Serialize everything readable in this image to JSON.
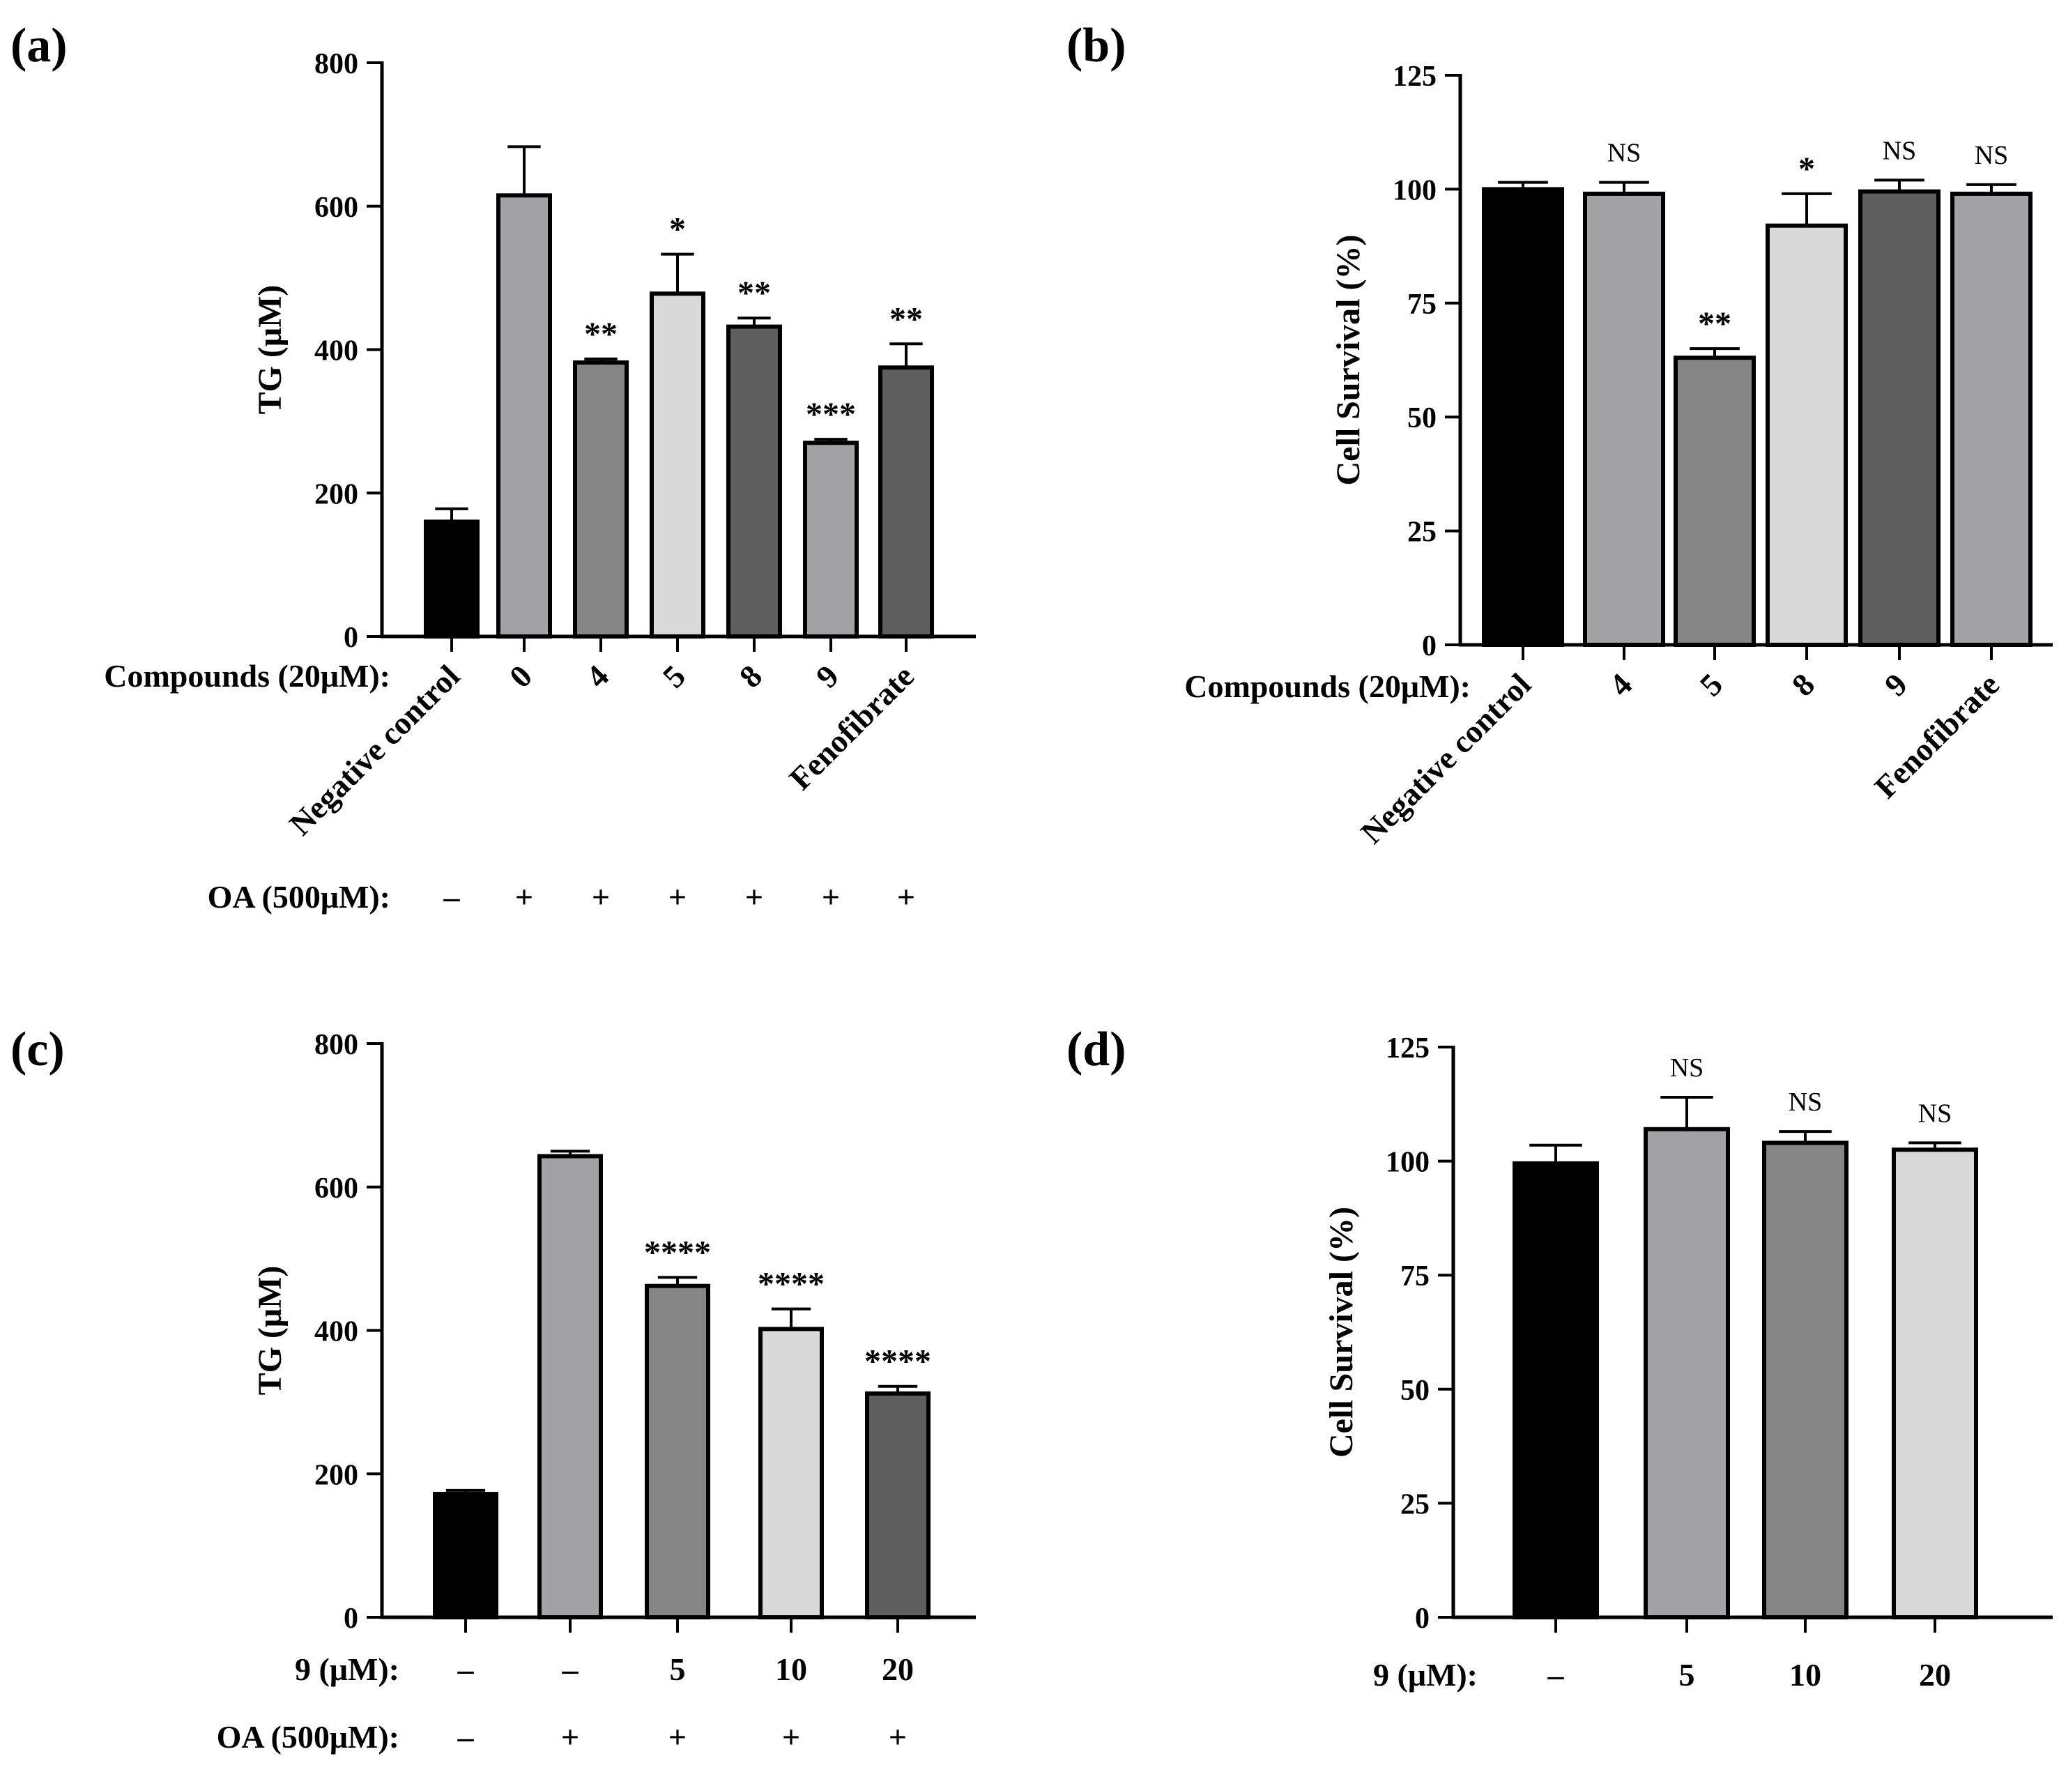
{
  "chart_data": [
    {
      "panel": "(a)",
      "type": "bar",
      "ylabel": "TG (μM)",
      "ylim": [
        0,
        800
      ],
      "yticks": [
        0,
        200,
        400,
        600,
        800
      ],
      "categories": [
        "Negative control",
        "0",
        "4",
        "5",
        "8",
        "9",
        "Fenofibrate"
      ],
      "values": [
        160,
        615,
        382,
        478,
        432,
        270,
        375
      ],
      "errors": [
        18,
        68,
        5,
        55,
        12,
        5,
        33
      ],
      "fills": [
        "#000000",
        "#a3a3a6",
        "#858585",
        "#d9d9d9",
        "#5e5e5e",
        "#a3a3a6",
        "#5e5e5e"
      ],
      "significance": [
        "",
        "",
        "**",
        "*",
        "**",
        "***",
        "**"
      ],
      "rows": [
        {
          "label": "Compounds (20μM):",
          "values": []
        },
        {
          "label": "OA (500μM):",
          "values": [
            "–",
            "+",
            "+",
            "+",
            "+",
            "+",
            "+"
          ]
        }
      ]
    },
    {
      "panel": "(b)",
      "type": "bar",
      "ylabel": "Cell Survival (%)",
      "ylim": [
        0,
        125
      ],
      "yticks": [
        0,
        25,
        50,
        75,
        100,
        125
      ],
      "categories": [
        "Negative control",
        "4",
        "5",
        "8",
        "9",
        "Fenofibrate"
      ],
      "values": [
        100,
        99,
        63,
        92,
        99.5,
        99
      ],
      "errors": [
        1.5,
        2.5,
        2,
        7,
        2.5,
        2
      ],
      "fills": [
        "#000000",
        "#a3a3a6",
        "#858585",
        "#d9d9d9",
        "#5e5e5e",
        "#a3a3a6"
      ],
      "significance": [
        "",
        "NS",
        "**",
        "*",
        "NS",
        "NS"
      ],
      "rows": [
        {
          "label": "Compounds (20μM):",
          "values": []
        }
      ]
    },
    {
      "panel": "(c)",
      "type": "bar",
      "ylabel": "TG (μM)",
      "ylim": [
        0,
        800
      ],
      "yticks": [
        0,
        200,
        400,
        600,
        800
      ],
      "categories": [
        "",
        "",
        "",
        "",
        ""
      ],
      "values": [
        172,
        643,
        462,
        402,
        312
      ],
      "errors": [
        5,
        7,
        12,
        28,
        10
      ],
      "fills": [
        "#000000",
        "#a3a3a6",
        "#858585",
        "#d9d9d9",
        "#5e5e5e"
      ],
      "significance": [
        "",
        "",
        "****",
        "****",
        "****"
      ],
      "rows": [
        {
          "label": "9 (μM):",
          "values": [
            "–",
            "–",
            "5",
            "10",
            "20"
          ]
        },
        {
          "label": "OA (500μM):",
          "values": [
            "–",
            "+",
            "+",
            "+",
            "+"
          ]
        }
      ]
    },
    {
      "panel": "(d)",
      "type": "bar",
      "ylabel": "Cell Survival (%)",
      "ylim": [
        0,
        125
      ],
      "yticks": [
        0,
        25,
        50,
        75,
        100,
        125
      ],
      "categories": [
        "",
        "",
        "",
        ""
      ],
      "values": [
        99.5,
        107,
        104,
        102.5
      ],
      "errors": [
        4,
        7,
        2.5,
        1.5
      ],
      "fills": [
        "#000000",
        "#a3a3a6",
        "#858585",
        "#d9d9d9"
      ],
      "significance": [
        "",
        "NS",
        "NS",
        "NS"
      ],
      "rows": [
        {
          "label": "9 (μM):",
          "values": [
            "–",
            "5",
            "10",
            "20"
          ]
        }
      ]
    }
  ]
}
